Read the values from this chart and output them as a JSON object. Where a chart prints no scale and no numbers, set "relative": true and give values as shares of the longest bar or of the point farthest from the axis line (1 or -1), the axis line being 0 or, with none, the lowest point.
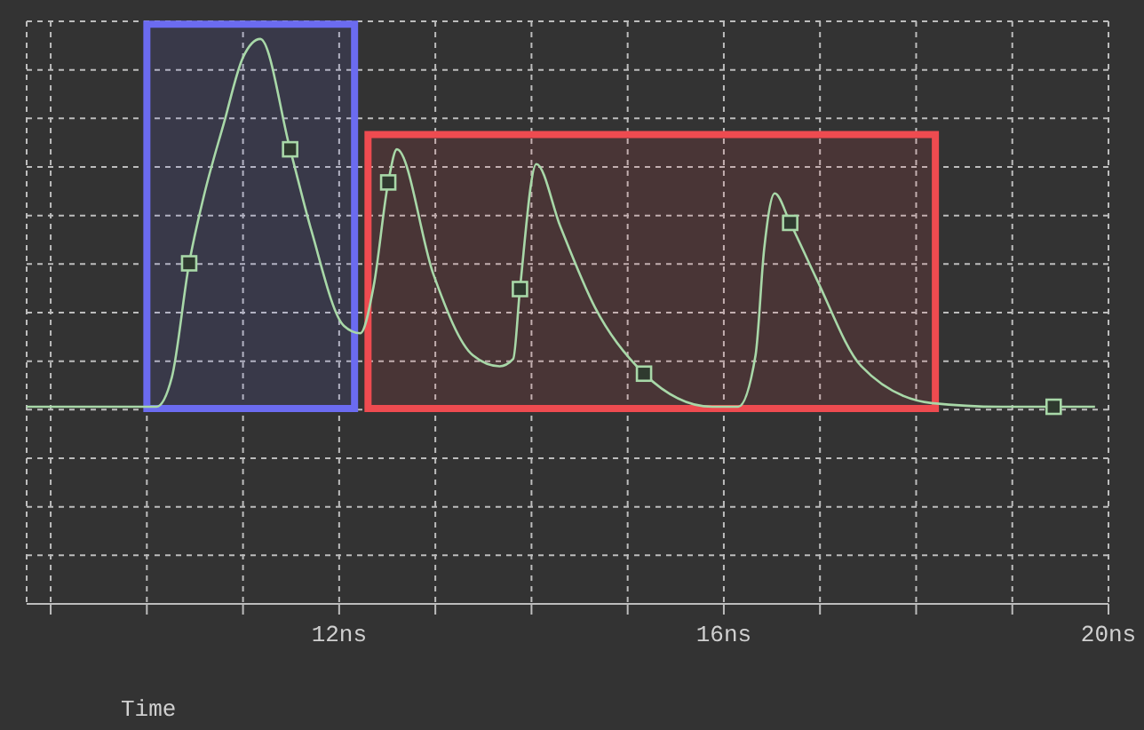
{
  "chart_data": {
    "type": "line",
    "xlabel": "Time",
    "relative": true,
    "xlim": [
      8.75,
      20
    ],
    "xticks": [
      {
        "value": 9,
        "label": null
      },
      {
        "value": 10,
        "label": null
      },
      {
        "value": 11,
        "label": null
      },
      {
        "value": 12,
        "label": "12ns"
      },
      {
        "value": 13,
        "label": null
      },
      {
        "value": 14,
        "label": null
      },
      {
        "value": 15,
        "label": null
      },
      {
        "value": 16,
        "label": "16ns"
      },
      {
        "value": 17,
        "label": null
      },
      {
        "value": 18,
        "label": null
      },
      {
        "value": 19,
        "label": null
      },
      {
        "value": 20,
        "label": "20ns"
      }
    ],
    "grid": true,
    "legend": false,
    "bands": [
      {
        "axis": "x",
        "from": 10.0,
        "to": 12.16,
        "color": "#6b6bf0"
      },
      {
        "axis": "x",
        "from": 12.3,
        "to": 18.2,
        "color": "#ee4b50"
      }
    ],
    "series": [
      {
        "type": "line",
        "color": "#a8d8a8",
        "marker": "none",
        "x": [
          8.75,
          10.1,
          10.26,
          10.44,
          10.59,
          10.8,
          11.0,
          11.18,
          11.49,
          11.71,
          12.05,
          12.22,
          12.36,
          12.51,
          12.6,
          12.98,
          13.39,
          13.67,
          13.81,
          13.88,
          14.05,
          14.3,
          14.66,
          15.17,
          15.88,
          16.15,
          16.33,
          16.42,
          16.53,
          16.69,
          16.96,
          17.43,
          18.16,
          18.88,
          19.43,
          19.86
        ],
        "values": [
          0,
          0,
          0.08,
          0.39,
          0.57,
          0.77,
          0.95,
          1,
          0.7,
          0.48,
          0.22,
          0.2,
          0.33,
          0.61,
          0.7,
          0.36,
          0.14,
          0.11,
          0.13,
          0.32,
          0.66,
          0.49,
          0.27,
          0.09,
          0,
          0,
          0.14,
          0.43,
          0.58,
          0.5,
          0.35,
          0.11,
          0.01,
          0,
          0,
          0
        ]
      },
      {
        "type": "scatter",
        "color": "#a8d8a8",
        "marker": "square",
        "x": [
          10.44,
          11.49,
          12.51,
          13.88,
          15.17,
          16.69,
          19.43
        ],
        "values": [
          0.39,
          0.7,
          0.61,
          0.32,
          0.09,
          0.5,
          0
        ]
      }
    ]
  }
}
